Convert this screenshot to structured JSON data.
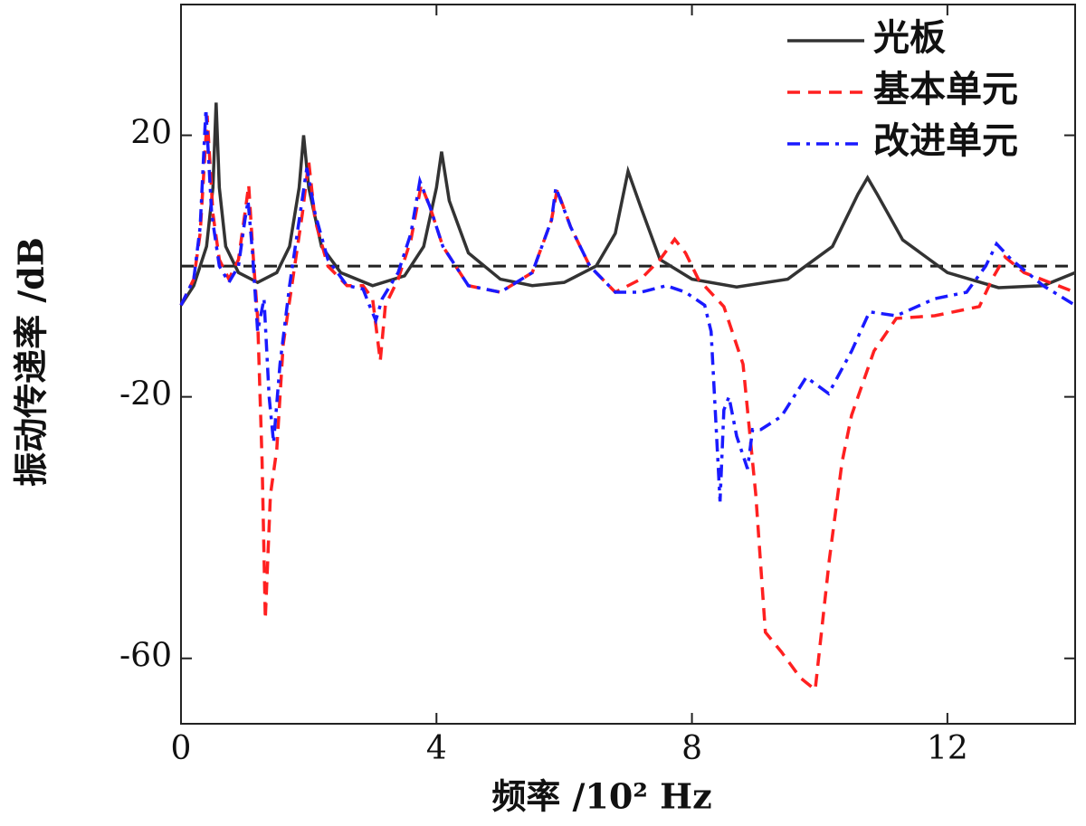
{
  "chart_data": {
    "type": "line",
    "x_label": "频率 /10² Hz",
    "y_label": "振动传递率 /dB",
    "xlim": [
      0,
      14
    ],
    "ylim": [
      -70,
      40
    ],
    "xticks": [
      0,
      4,
      8,
      12
    ],
    "yticks": [
      -60,
      -20,
      20
    ],
    "hline": 0,
    "legend": "upper right",
    "series": [
      {
        "name": "光板",
        "color": "#333333",
        "dash": "solid",
        "x": [
          0,
          0.2,
          0.4,
          0.5,
          0.55,
          0.6,
          0.7,
          0.9,
          1.2,
          1.5,
          1.7,
          1.85,
          1.92,
          2.0,
          2.2,
          2.5,
          3.0,
          3.5,
          3.8,
          4.0,
          4.08,
          4.2,
          4.5,
          5.0,
          5.5,
          6.0,
          6.5,
          6.8,
          7.0,
          7.2,
          7.5,
          8.0,
          8.7,
          9.5,
          10.2,
          10.6,
          10.75,
          10.9,
          11.3,
          12.0,
          12.8,
          13.5,
          14
        ],
        "values": [
          -6,
          -3,
          3,
          12,
          25,
          12,
          3,
          -1,
          -2.5,
          -1,
          3,
          12,
          20,
          12,
          3,
          -1,
          -3,
          -1.5,
          3,
          12,
          17.5,
          10,
          2,
          -2,
          -3,
          -2.5,
          0,
          5,
          14.5,
          9,
          1,
          -2,
          -3.2,
          -2,
          3,
          11,
          13.5,
          11,
          4,
          -1,
          -3.3,
          -3,
          -1
        ]
      },
      {
        "name": "基本单元",
        "color": "#ff2020",
        "dash": "dashed",
        "x": [
          0,
          0.2,
          0.3,
          0.41,
          0.5,
          0.6,
          0.75,
          0.9,
          1.0,
          1.06,
          1.12,
          1.2,
          1.27,
          1.32,
          1.4,
          1.5,
          1.6,
          1.75,
          1.9,
          2.0,
          2.1,
          2.3,
          2.6,
          2.85,
          3.0,
          3.12,
          3.2,
          3.4,
          3.6,
          3.76,
          3.9,
          4.1,
          4.5,
          5.0,
          5.5,
          5.8,
          5.89,
          6.1,
          6.4,
          6.8,
          7.2,
          7.5,
          7.73,
          7.9,
          8.1,
          8.5,
          8.8,
          9.0,
          9.15,
          9.4,
          9.7,
          9.93,
          10.15,
          10.35,
          10.5,
          10.85,
          11.2,
          11.8,
          12.5,
          12.7,
          12.9,
          13.2,
          14
        ],
        "values": [
          -6,
          -2,
          5,
          23,
          8,
          1,
          -2,
          1,
          8,
          12.4,
          3,
          -8,
          -30,
          -54,
          -35,
          -28,
          -12,
          -2,
          8,
          16,
          7,
          0,
          -3,
          -3,
          -5,
          -14.5,
          -6,
          -2,
          4,
          12.4,
          9,
          3,
          -3,
          -4,
          -1,
          7,
          11.7,
          6,
          0,
          -4,
          -2,
          1,
          4.1,
          2,
          -2,
          -6.2,
          -15,
          -35,
          -56,
          -59,
          -63,
          -64.8,
          -45,
          -30,
          -22.8,
          -13,
          -8,
          -7.6,
          -6.2,
          -2,
          1.4,
          -1,
          -4
        ]
      },
      {
        "name": "改进单元",
        "color": "#1a1aff",
        "dash": "dashdot",
        "x": [
          0,
          0.2,
          0.3,
          0.39,
          0.48,
          0.6,
          0.75,
          0.9,
          1.0,
          1.05,
          1.12,
          1.2,
          1.3,
          1.38,
          1.45,
          1.55,
          1.7,
          1.85,
          1.97,
          2.1,
          2.3,
          2.6,
          2.85,
          2.95,
          3.05,
          3.15,
          3.4,
          3.6,
          3.74,
          3.9,
          4.1,
          4.5,
          5.0,
          5.5,
          5.8,
          5.87,
          6.1,
          6.4,
          6.8,
          7.2,
          7.6,
          7.9,
          8.2,
          8.3,
          8.44,
          8.5,
          8.58,
          8.7,
          8.87,
          8.95,
          9.08,
          9.4,
          9.79,
          10.14,
          10.5,
          10.78,
          11.2,
          11.8,
          12.3,
          12.6,
          12.77,
          13.0,
          13.5,
          14
        ],
        "values": [
          -6,
          -2,
          6,
          24,
          8,
          0,
          -2.5,
          0,
          7,
          10,
          2,
          -10,
          -5,
          -20,
          -27,
          -15,
          -3,
          7,
          15,
          8,
          1,
          -3,
          -3.5,
          -6,
          -8.3,
          -5,
          -1,
          5,
          13,
          9,
          3,
          -3,
          -4,
          -1,
          7,
          12,
          6,
          0,
          -4,
          -4,
          -3,
          -4,
          -6,
          -10,
          -36,
          -22,
          -20,
          -26,
          -31,
          -25,
          -25,
          -23,
          -17,
          -19.5,
          -13,
          -7,
          -7.6,
          -5,
          -4,
          0,
          3.4,
          1,
          -3,
          -6
        ]
      }
    ]
  }
}
